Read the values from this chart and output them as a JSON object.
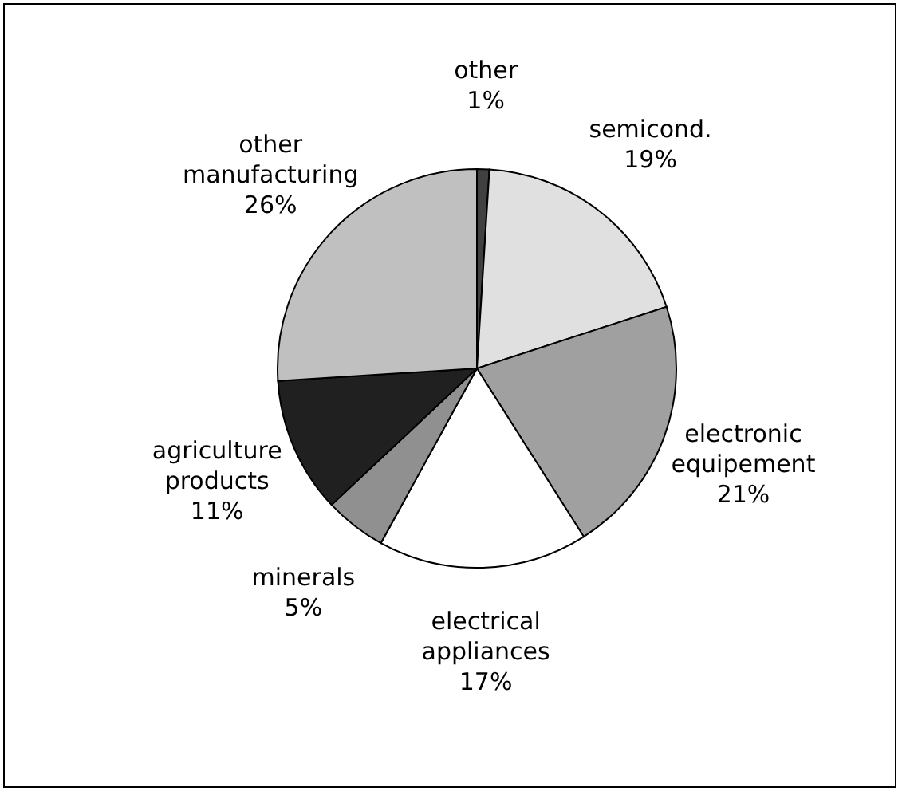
{
  "chart_data": {
    "type": "pie",
    "categories": [
      "other",
      "semicond.",
      "electronic equipement",
      "electrical appliances",
      "minerals",
      "agriculture products",
      "other manufacturing"
    ],
    "values": [
      1,
      19,
      21,
      17,
      5,
      11,
      26
    ],
    "value_labels": [
      "1%",
      "19%",
      "21%",
      "17%",
      "5%",
      "11%",
      "26%"
    ],
    "colors": [
      "#404040",
      "#e0e0e0",
      "#a0a0a0",
      "#ffffff",
      "#909090",
      "#202020",
      "#c0c0c0"
    ],
    "legend": false
  }
}
